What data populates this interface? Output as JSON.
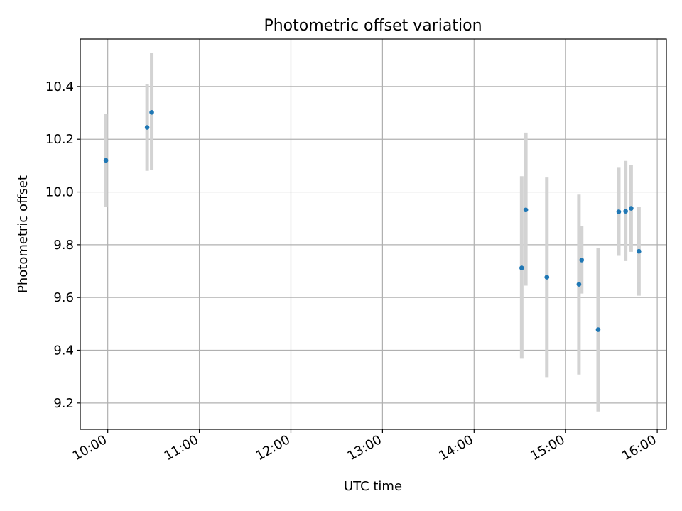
{
  "chart_data": {
    "type": "scatter",
    "title": "Photometric offset variation",
    "xlabel": "UTC time",
    "ylabel": "Photometric offset",
    "x_unit": "hours UTC",
    "xlim": [
      9.7,
      16.1
    ],
    "ylim": [
      9.1,
      10.58
    ],
    "x_ticks": [
      {
        "value": 10,
        "label": "10:00"
      },
      {
        "value": 11,
        "label": "11:00"
      },
      {
        "value": 12,
        "label": "12:00"
      },
      {
        "value": 13,
        "label": "13:00"
      },
      {
        "value": 14,
        "label": "14:00"
      },
      {
        "value": 15,
        "label": "15:00"
      },
      {
        "value": 16,
        "label": "16:00"
      }
    ],
    "y_ticks": [
      {
        "value": 9.2,
        "label": "9.2"
      },
      {
        "value": 9.4,
        "label": "9.4"
      },
      {
        "value": 9.6,
        "label": "9.6"
      },
      {
        "value": 9.8,
        "label": "9.8"
      },
      {
        "value": 10.0,
        "label": "10.0"
      },
      {
        "value": 10.2,
        "label": "10.2"
      },
      {
        "value": 10.4,
        "label": "10.4"
      }
    ],
    "grid": true,
    "colors": {
      "point": "#1f77b4",
      "errorbar": "#d3d3d3",
      "grid": "#b0b0b0"
    },
    "points": [
      {
        "time": "09:59",
        "x": 9.98,
        "y": 10.12,
        "yerr_low": 9.945,
        "yerr_high": 10.295
      },
      {
        "time": "10:26",
        "x": 10.43,
        "y": 10.245,
        "yerr_low": 10.08,
        "yerr_high": 10.41
      },
      {
        "time": "10:29",
        "x": 10.48,
        "y": 10.302,
        "yerr_low": 10.085,
        "yerr_high": 10.527
      },
      {
        "time": "14:31",
        "x": 14.52,
        "y": 9.712,
        "yerr_low": 9.368,
        "yerr_high": 10.06
      },
      {
        "time": "14:34",
        "x": 14.565,
        "y": 9.932,
        "yerr_low": 9.645,
        "yerr_high": 10.225
      },
      {
        "time": "14:48",
        "x": 14.795,
        "y": 9.677,
        "yerr_low": 9.298,
        "yerr_high": 10.055
      },
      {
        "time": "15:09",
        "x": 15.145,
        "y": 9.65,
        "yerr_low": 9.308,
        "yerr_high": 9.99
      },
      {
        "time": "15:10",
        "x": 15.175,
        "y": 9.742,
        "yerr_low": 9.615,
        "yerr_high": 9.872
      },
      {
        "time": "15:21",
        "x": 15.355,
        "y": 9.478,
        "yerr_low": 9.168,
        "yerr_high": 9.788
      },
      {
        "time": "15:35",
        "x": 15.58,
        "y": 9.925,
        "yerr_low": 9.758,
        "yerr_high": 10.092
      },
      {
        "time": "15:39",
        "x": 15.655,
        "y": 9.927,
        "yerr_low": 9.738,
        "yerr_high": 10.118
      },
      {
        "time": "15:43",
        "x": 15.715,
        "y": 9.938,
        "yerr_low": 9.773,
        "yerr_high": 10.103
      },
      {
        "time": "15:48",
        "x": 15.8,
        "y": 9.775,
        "yerr_low": 9.607,
        "yerr_high": 9.943
      }
    ]
  }
}
